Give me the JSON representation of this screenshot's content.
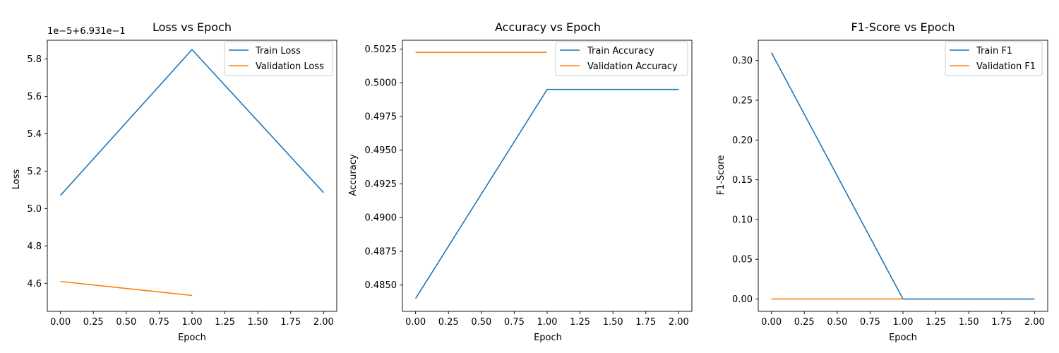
{
  "colors": {
    "train": "#1f77b4",
    "validation": "#ff7f0e"
  },
  "chart_data": [
    {
      "type": "line",
      "title": "Loss vs Epoch",
      "xlabel": "Epoch",
      "ylabel": "Loss",
      "y_offset_label": "1e−5+6.931e−1",
      "xlim": [
        -0.1,
        2.1
      ],
      "ylim": [
        4.45,
        5.9
      ],
      "xticks": [
        0.0,
        0.25,
        0.5,
        0.75,
        1.0,
        1.25,
        1.5,
        1.75,
        2.0
      ],
      "xtick_labels": [
        "0.00",
        "0.25",
        "0.50",
        "0.75",
        "1.00",
        "1.25",
        "1.50",
        "1.75",
        "2.00"
      ],
      "yticks": [
        4.6,
        4.8,
        5.0,
        5.2,
        5.4,
        5.6,
        5.8
      ],
      "ytick_labels": [
        "4.6",
        "4.8",
        "5.0",
        "5.2",
        "5.4",
        "5.6",
        "5.8"
      ],
      "grid": false,
      "legend_position": "top-right",
      "series": [
        {
          "name": "Train Loss",
          "color_key": "train",
          "x": [
            0,
            1,
            2
          ],
          "y": [
            5.07,
            5.85,
            5.085
          ]
        },
        {
          "name": "Validation Loss",
          "color_key": "validation",
          "x": [
            0,
            1
          ],
          "y": [
            4.61,
            4.535
          ]
        }
      ]
    },
    {
      "type": "line",
      "title": "Accuracy vs Epoch",
      "xlabel": "Epoch",
      "ylabel": "Accuracy",
      "y_offset_label": "",
      "xlim": [
        -0.1,
        2.1
      ],
      "ylim": [
        0.48305,
        0.50315
      ],
      "xticks": [
        0.0,
        0.25,
        0.5,
        0.75,
        1.0,
        1.25,
        1.5,
        1.75,
        2.0
      ],
      "xtick_labels": [
        "0.00",
        "0.25",
        "0.50",
        "0.75",
        "1.00",
        "1.25",
        "1.50",
        "1.75",
        "2.00"
      ],
      "yticks": [
        0.485,
        0.4875,
        0.49,
        0.4925,
        0.495,
        0.4975,
        0.5,
        0.5025
      ],
      "ytick_labels": [
        "0.4850",
        "0.4875",
        "0.4900",
        "0.4925",
        "0.4950",
        "0.4975",
        "0.5000",
        "0.5025"
      ],
      "grid": false,
      "legend_position": "top-right",
      "series": [
        {
          "name": "Train Accuracy",
          "color_key": "train",
          "x": [
            0,
            1,
            2
          ],
          "y": [
            0.484,
            0.4995,
            0.4995
          ]
        },
        {
          "name": "Validation Accuracy",
          "color_key": "validation",
          "x": [
            0,
            1
          ],
          "y": [
            0.50225,
            0.50225
          ]
        }
      ]
    },
    {
      "type": "line",
      "title": "F1-Score vs Epoch",
      "xlabel": "Epoch",
      "ylabel": "F1-Score",
      "y_offset_label": "",
      "xlim": [
        -0.1,
        2.1
      ],
      "ylim": [
        -0.0155,
        0.3255
      ],
      "xticks": [
        0.0,
        0.25,
        0.5,
        0.75,
        1.0,
        1.25,
        1.5,
        1.75,
        2.0
      ],
      "xtick_labels": [
        "0.00",
        "0.25",
        "0.50",
        "0.75",
        "1.00",
        "1.25",
        "1.50",
        "1.75",
        "2.00"
      ],
      "yticks": [
        0.0,
        0.05,
        0.1,
        0.15,
        0.2,
        0.25,
        0.3
      ],
      "ytick_labels": [
        "0.00",
        "0.05",
        "0.10",
        "0.15",
        "0.20",
        "0.25",
        "0.30"
      ],
      "grid": false,
      "legend_position": "top-right",
      "series": [
        {
          "name": "Train F1",
          "color_key": "train",
          "x": [
            0,
            1,
            2
          ],
          "y": [
            0.31,
            0.0,
            0.0
          ]
        },
        {
          "name": "Validation F1",
          "color_key": "validation",
          "x": [
            0,
            1
          ],
          "y": [
            0.0,
            0.0
          ]
        }
      ]
    }
  ]
}
